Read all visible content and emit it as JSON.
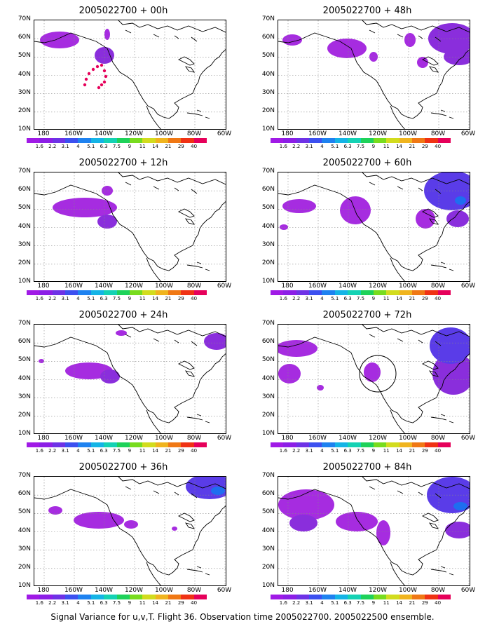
{
  "panels": [
    {
      "title": "2005022700 + 00h",
      "has_obs_track": true,
      "has_circle": false
    },
    {
      "title": "2005022700 + 48h",
      "has_obs_track": false,
      "has_circle": false
    },
    {
      "title": "2005022700 + 12h",
      "has_obs_track": false,
      "has_circle": false
    },
    {
      "title": "2005022700 + 60h",
      "has_obs_track": false,
      "has_circle": false
    },
    {
      "title": "2005022700 + 24h",
      "has_obs_track": false,
      "has_circle": false
    },
    {
      "title": "2005022700 + 72h",
      "has_obs_track": false,
      "has_circle": true
    },
    {
      "title": "2005022700 + 36h",
      "has_obs_track": false,
      "has_circle": false
    },
    {
      "title": "2005022700 + 84h",
      "has_obs_track": false,
      "has_circle": false
    }
  ],
  "lat_labels": [
    "70N",
    "60N",
    "50N",
    "40N",
    "30N",
    "20N",
    "10N"
  ],
  "lon_labels": [
    "180",
    "160W",
    "140W",
    "120W",
    "100W",
    "80W",
    "60W"
  ],
  "colorbar": {
    "labels": [
      "1.6",
      "2.2",
      "3.1",
      "4",
      "5.1",
      "6.3",
      "7.5",
      "9",
      "11",
      "14",
      "21",
      "29",
      "40"
    ],
    "colors": [
      "#a01ae6",
      "#8c1ee6",
      "#6e32e6",
      "#3c50f0",
      "#1e82f0",
      "#14b4e6",
      "#14d2b4",
      "#1ed25a",
      "#78dc1e",
      "#d2dc1e",
      "#f0b41e",
      "#f07814",
      "#f03214",
      "#e6005a"
    ]
  },
  "footer": "Signal Variance for u,v,T. Flight 36. Observation time 2005022700. 2005022500 ensemble."
}
